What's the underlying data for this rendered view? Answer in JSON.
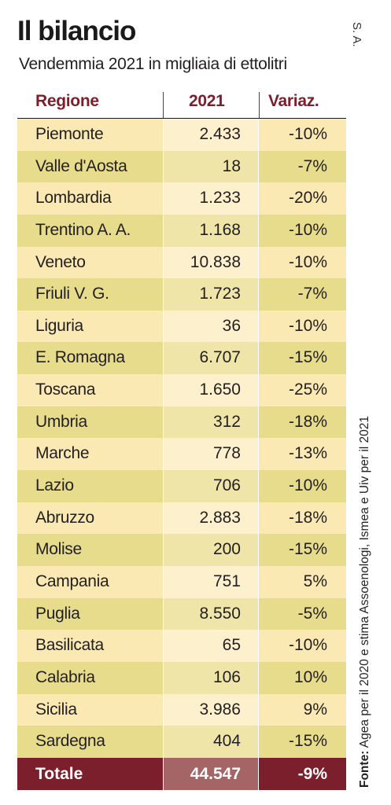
{
  "chart_data": {
    "type": "table",
    "title": "Il bilancio",
    "subtitle": "Vendemmia 2021 in migliaia di ettolitri",
    "columns": [
      "Regione",
      "2021",
      "Variaz."
    ],
    "rows": [
      {
        "region": "Piemonte",
        "value": "2.433",
        "change": "-10%"
      },
      {
        "region": "Valle d'Aosta",
        "value": "18",
        "change": "-7%"
      },
      {
        "region": "Lombardia",
        "value": "1.233",
        "change": "-20%"
      },
      {
        "region": "Trentino A. A.",
        "value": "1.168",
        "change": "-10%"
      },
      {
        "region": "Veneto",
        "value": "10.838",
        "change": "-10%"
      },
      {
        "region": "Friuli V. G.",
        "value": "1.723",
        "change": "-7%"
      },
      {
        "region": "Liguria",
        "value": "36",
        "change": "-10%"
      },
      {
        "region": "E. Romagna",
        "value": "6.707",
        "change": "-15%"
      },
      {
        "region": "Toscana",
        "value": "1.650",
        "change": "-25%"
      },
      {
        "region": "Umbria",
        "value": "312",
        "change": "-18%"
      },
      {
        "region": "Marche",
        "value": "778",
        "change": "-13%"
      },
      {
        "region": "Lazio",
        "value": "706",
        "change": "-10%"
      },
      {
        "region": "Abruzzo",
        "value": "2.883",
        "change": "-18%"
      },
      {
        "region": "Molise",
        "value": "200",
        "change": "-15%"
      },
      {
        "region": "Campania",
        "value": "751",
        "change": "5%"
      },
      {
        "region": "Puglia",
        "value": "8.550",
        "change": "-5%"
      },
      {
        "region": "Basilicata",
        "value": "65",
        "change": "-10%"
      },
      {
        "region": "Calabria",
        "value": "106",
        "change": "10%"
      },
      {
        "region": "Sicilia",
        "value": "3.986",
        "change": "9%"
      },
      {
        "region": "Sardegna",
        "value": "404",
        "change": "-15%"
      }
    ],
    "total": {
      "label": "Totale",
      "value": "44.547",
      "change": "-9%"
    }
  },
  "credit": "S. A.",
  "source": {
    "label": "Fonte:",
    "text": " Agea per il 2020 e stima Assoenologi, Ismea e Uiv per il 2021"
  },
  "colors": {
    "accent": "#7a1f2b",
    "row_light": "#fae9b2",
    "row_dark": "#e7dc8b"
  }
}
